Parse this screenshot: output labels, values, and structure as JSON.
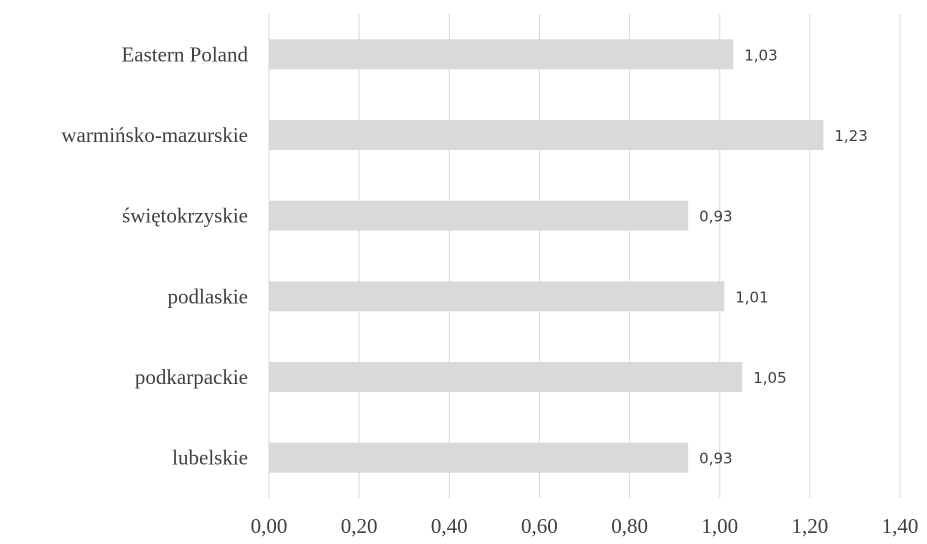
{
  "chart_data": {
    "type": "bar",
    "orientation": "horizontal",
    "categories": [
      "Eastern Poland",
      "warmińsko-mazurskie",
      "świętokrzyskie",
      "podlaskie",
      "podkarpackie",
      "lubelskie"
    ],
    "values": [
      1.03,
      1.23,
      0.93,
      1.01,
      1.05,
      0.93
    ],
    "value_labels": [
      "1,03",
      "1,23",
      "0,93",
      "1,01",
      "1,05",
      "0,93"
    ],
    "xlim": [
      0,
      1.4
    ],
    "xticks": [
      0,
      0.2,
      0.4,
      0.6,
      0.8,
      1.0,
      1.2,
      1.4
    ],
    "xtick_labels": [
      "0,00",
      "0,20",
      "0,40",
      "0,60",
      "0,80",
      "1,00",
      "1,20",
      "1,40"
    ],
    "title": "",
    "xlabel": "",
    "ylabel": "",
    "grid": "vertical",
    "legend": "none",
    "colors": {
      "bar": "#d9d9d9",
      "grid": "#d9d9d9",
      "text": "#404040"
    }
  }
}
